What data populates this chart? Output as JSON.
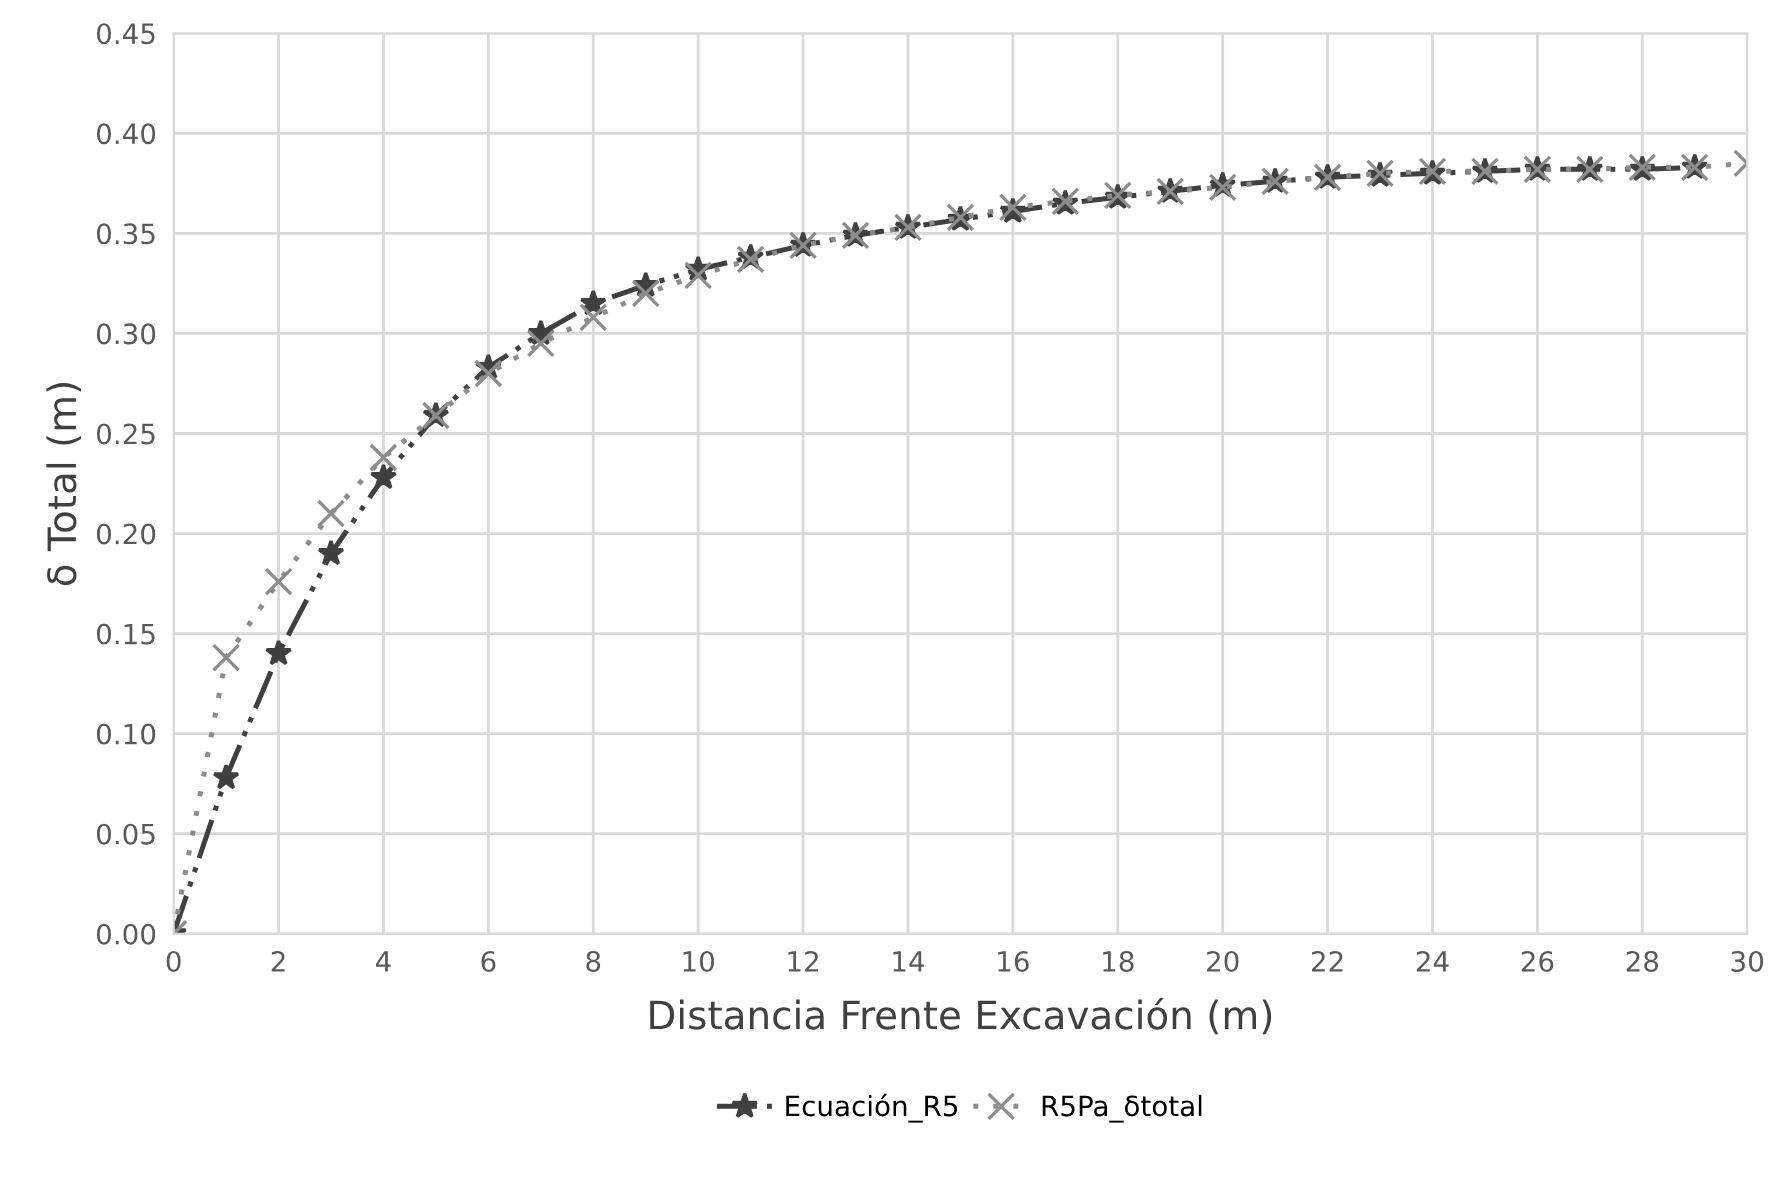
{
  "chart_data": {
    "type": "line",
    "xlabel": "Distancia Frente Excavación (m)",
    "ylabel": "δ Total (m)",
    "xlim": [
      0,
      30
    ],
    "xticks": [
      0,
      2,
      4,
      6,
      8,
      10,
      12,
      14,
      16,
      18,
      20,
      22,
      24,
      26,
      28,
      30
    ],
    "ylim": [
      0,
      0.45
    ],
    "yticks": [
      {
        "value": 0,
        "label": "0.00"
      },
      {
        "value": 0.05,
        "label": "0.05"
      },
      {
        "value": 0.1,
        "label": "0.10"
      },
      {
        "value": 0.15,
        "label": "0.15"
      },
      {
        "value": 0.2,
        "label": "0.20"
      },
      {
        "value": 0.25,
        "label": "0.25"
      },
      {
        "value": 0.3,
        "label": "0.30"
      },
      {
        "value": 0.35,
        "label": "0.35"
      },
      {
        "value": 0.4,
        "label": "0.40"
      },
      {
        "value": 0.45,
        "label": "0.45"
      }
    ],
    "grid": true,
    "legend": "bottom",
    "series": [
      {
        "name": "Ecuación_R5",
        "color": "#404040",
        "marker": "star",
        "line_style": "dashed",
        "x": [
          0,
          1,
          2,
          3,
          4,
          5,
          6,
          7,
          8,
          9,
          10,
          11,
          12,
          13,
          14,
          15,
          16,
          17,
          18,
          19,
          20,
          21,
          22,
          23,
          24,
          25,
          26,
          27,
          28,
          29
        ],
        "values": [
          0,
          0.078,
          0.14,
          0.19,
          0.228,
          0.259,
          0.283,
          0.3,
          0.315,
          0.324,
          0.332,
          0.338,
          0.344,
          0.349,
          0.353,
          0.357,
          0.361,
          0.365,
          0.368,
          0.371,
          0.374,
          0.376,
          0.378,
          0.379,
          0.38,
          0.381,
          0.382,
          0.382,
          0.382,
          0.383
        ]
      },
      {
        "name": "R5Pa_δtotal",
        "color": "#8c8c8c",
        "marker": "cross",
        "line_style": "dotted",
        "x": [
          0,
          1,
          2,
          3,
          4,
          5,
          6,
          7,
          8,
          9,
          10,
          11,
          12,
          13,
          14,
          15,
          16,
          17,
          18,
          19,
          20,
          21,
          22,
          23,
          24,
          25,
          26,
          27,
          28,
          29,
          30
        ],
        "values": [
          0,
          0.138,
          0.176,
          0.21,
          0.238,
          0.259,
          0.28,
          0.295,
          0.308,
          0.32,
          0.329,
          0.337,
          0.344,
          0.349,
          0.353,
          0.358,
          0.363,
          0.366,
          0.369,
          0.371,
          0.373,
          0.376,
          0.378,
          0.38,
          0.381,
          0.381,
          0.382,
          0.382,
          0.383,
          0.383,
          0.385
        ]
      }
    ]
  }
}
